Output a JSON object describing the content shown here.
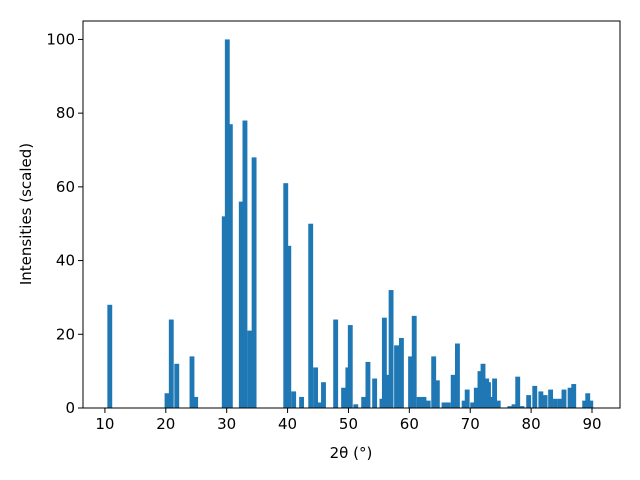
{
  "chart_data": {
    "type": "bar",
    "x_label": "2θ (°)",
    "y_label": "Intensities (scaled)",
    "x": [
      10.8,
      20.2,
      20.9,
      21.8,
      24.3,
      24.9,
      29.6,
      30.1,
      30.6,
      32.4,
      33.0,
      33.8,
      34.5,
      39.7,
      40.2,
      41.0,
      42.3,
      43.8,
      44.6,
      45.3,
      45.9,
      47.9,
      49.2,
      49.9,
      50.3,
      51.2,
      52.5,
      53.2,
      54.3,
      55.5,
      55.9,
      56.5,
      57.0,
      57.9,
      58.7,
      60.2,
      60.8,
      61.6,
      62.4,
      63.1,
      64.0,
      64.6,
      65.7,
      66.4,
      67.2,
      67.9,
      69.0,
      69.5,
      70.4,
      71.0,
      71.6,
      72.1,
      72.7,
      73.0,
      73.5,
      74.0,
      74.6,
      76.5,
      77.2,
      77.8,
      78.5,
      79.6,
      80.6,
      81.6,
      82.3,
      83.2,
      84.0,
      84.8,
      85.4,
      86.4,
      87.0,
      88.8,
      89.3,
      89.8
    ],
    "values": [
      28,
      4,
      24,
      12,
      14,
      3,
      52,
      100,
      77,
      56,
      78,
      21,
      68,
      61,
      44,
      4.5,
      3,
      50,
      11,
      1.5,
      7,
      24,
      5.5,
      11,
      22.5,
      1,
      3,
      12.5,
      8,
      2.5,
      24.5,
      9,
      32,
      17,
      19,
      14,
      25,
      3,
      3,
      2,
      14,
      7.5,
      1.5,
      1.5,
      9,
      17.5,
      2,
      5,
      1.5,
      5.5,
      10,
      12,
      8,
      7,
      3,
      8,
      2,
      0.5,
      1,
      8.5,
      0.5,
      3.5,
      6,
      4.5,
      3.5,
      5,
      2.5,
      2.5,
      5,
      5.5,
      6.5,
      2,
      4,
      2
    ],
    "color": "#1f77b4",
    "bar_width": 0.8,
    "xlim": [
      6.4,
      94.6
    ],
    "xticks": [
      10,
      20,
      30,
      40,
      50,
      60,
      70,
      80,
      90
    ],
    "ylim": [
      0,
      105
    ],
    "yticks": [
      0,
      20,
      40,
      60,
      80,
      100
    ]
  }
}
